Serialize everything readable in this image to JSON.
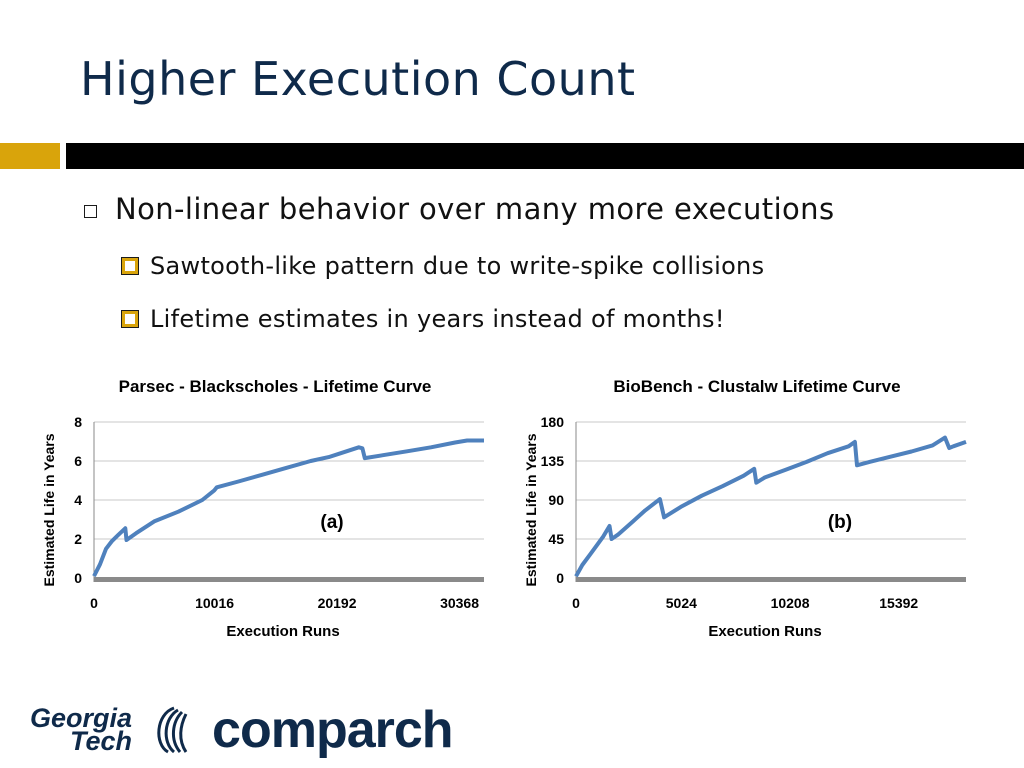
{
  "slide": {
    "title": "Higher Execution Count",
    "bullets": [
      {
        "text": "Non-linear behavior over many more executions",
        "sub": [
          "Sawtooth-like pattern due to write-spike collisions",
          "Lifetime estimates in years instead of months!"
        ]
      }
    ]
  },
  "logos": {
    "gt_line1": "Georgia",
    "gt_line2": "Tech",
    "comparch": "comparch"
  },
  "colors": {
    "accent_gold": "#d9a40b",
    "title_navy": "#0f2a4a",
    "series_blue": "#4f81bd"
  },
  "chart_data": [
    {
      "type": "line",
      "title": "Parsec - Blackscholes - Lifetime Curve",
      "xlabel": "Execution Runs",
      "ylabel": "Estimated Life in Years",
      "annotation": "(a)",
      "x_ticks": [
        "0",
        "10016",
        "20192",
        "30368"
      ],
      "x_tick_values": [
        0,
        10016,
        20192,
        30368
      ],
      "xlim": [
        0,
        32400
      ],
      "y_ticks": [
        "0",
        "2",
        "4",
        "6",
        "8"
      ],
      "ylim": [
        0,
        8
      ],
      "grid": true,
      "series": [
        {
          "x": [
            0,
            500,
            1000,
            1500,
            2000,
            2600,
            2700,
            3500,
            5000,
            7000,
            9000,
            10000,
            10200,
            12000,
            14000,
            16000,
            18000,
            19500,
            20500,
            22000,
            22300,
            22500,
            24000,
            26000,
            28000,
            30000,
            31000,
            32400
          ],
          "y": [
            0.1,
            0.7,
            1.5,
            1.9,
            2.2,
            2.55,
            1.95,
            2.3,
            2.9,
            3.4,
            4.0,
            4.5,
            4.65,
            4.95,
            5.3,
            5.65,
            6.0,
            6.2,
            6.4,
            6.7,
            6.65,
            6.15,
            6.3,
            6.5,
            6.7,
            6.95,
            7.05,
            7.05
          ]
        }
      ]
    },
    {
      "type": "line",
      "title": "BioBench - Clustalw Lifetime Curve",
      "xlabel": "Execution Runs",
      "ylabel": "Estimated Life in Years",
      "annotation": "(b)",
      "x_ticks": [
        "0",
        "5024",
        "10208",
        "15392"
      ],
      "x_tick_values": [
        0,
        5024,
        10208,
        15392
      ],
      "xlim": [
        0,
        18600
      ],
      "y_ticks": [
        "0",
        "45",
        "90",
        "135",
        "180"
      ],
      "ylim": [
        0,
        180
      ],
      "grid": true,
      "series": [
        {
          "x": [
            0,
            300,
            700,
            1000,
            1300,
            1600,
            1700,
            2000,
            2700,
            3300,
            4000,
            4200,
            5000,
            6000,
            7000,
            8000,
            8500,
            8600,
            9000,
            10000,
            11000,
            12000,
            13000,
            13300,
            13400,
            14000,
            15000,
            16000,
            17000,
            17600,
            17800,
            18000,
            18600
          ],
          "y": [
            2,
            15,
            28,
            38,
            48,
            60,
            45,
            50,
            65,
            78,
            91,
            70,
            82,
            95,
            106,
            118,
            126,
            110,
            116,
            125,
            134,
            144,
            152,
            157,
            130,
            134,
            140,
            146,
            153,
            162,
            150,
            152,
            157
          ]
        }
      ]
    }
  ]
}
